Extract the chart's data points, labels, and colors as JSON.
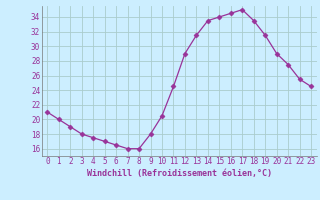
{
  "x": [
    0,
    1,
    2,
    3,
    4,
    5,
    6,
    7,
    8,
    9,
    10,
    11,
    12,
    13,
    14,
    15,
    16,
    17,
    18,
    19,
    20,
    21,
    22,
    23
  ],
  "y": [
    21.0,
    20.0,
    19.0,
    18.0,
    17.5,
    17.0,
    16.5,
    16.0,
    16.0,
    18.0,
    20.5,
    24.5,
    29.0,
    31.5,
    33.5,
    34.0,
    34.5,
    35.0,
    33.5,
    31.5,
    29.0,
    27.5,
    25.5,
    24.5
  ],
  "xlabel": "Windchill (Refroidissement éolien,°C)",
  "ylim": [
    15.0,
    35.5
  ],
  "yticks": [
    16,
    18,
    20,
    22,
    24,
    26,
    28,
    30,
    32,
    34
  ],
  "xticks": [
    0,
    1,
    2,
    3,
    4,
    5,
    6,
    7,
    8,
    9,
    10,
    11,
    12,
    13,
    14,
    15,
    16,
    17,
    18,
    19,
    20,
    21,
    22,
    23
  ],
  "line_color": "#993399",
  "marker": "D",
  "marker_size": 2.5,
  "bg_color": "#cceeff",
  "grid_color": "#aacccc",
  "font_color": "#993399",
  "font_family": "monospace",
  "tick_fontsize": 5.5,
  "xlabel_fontsize": 6.0
}
